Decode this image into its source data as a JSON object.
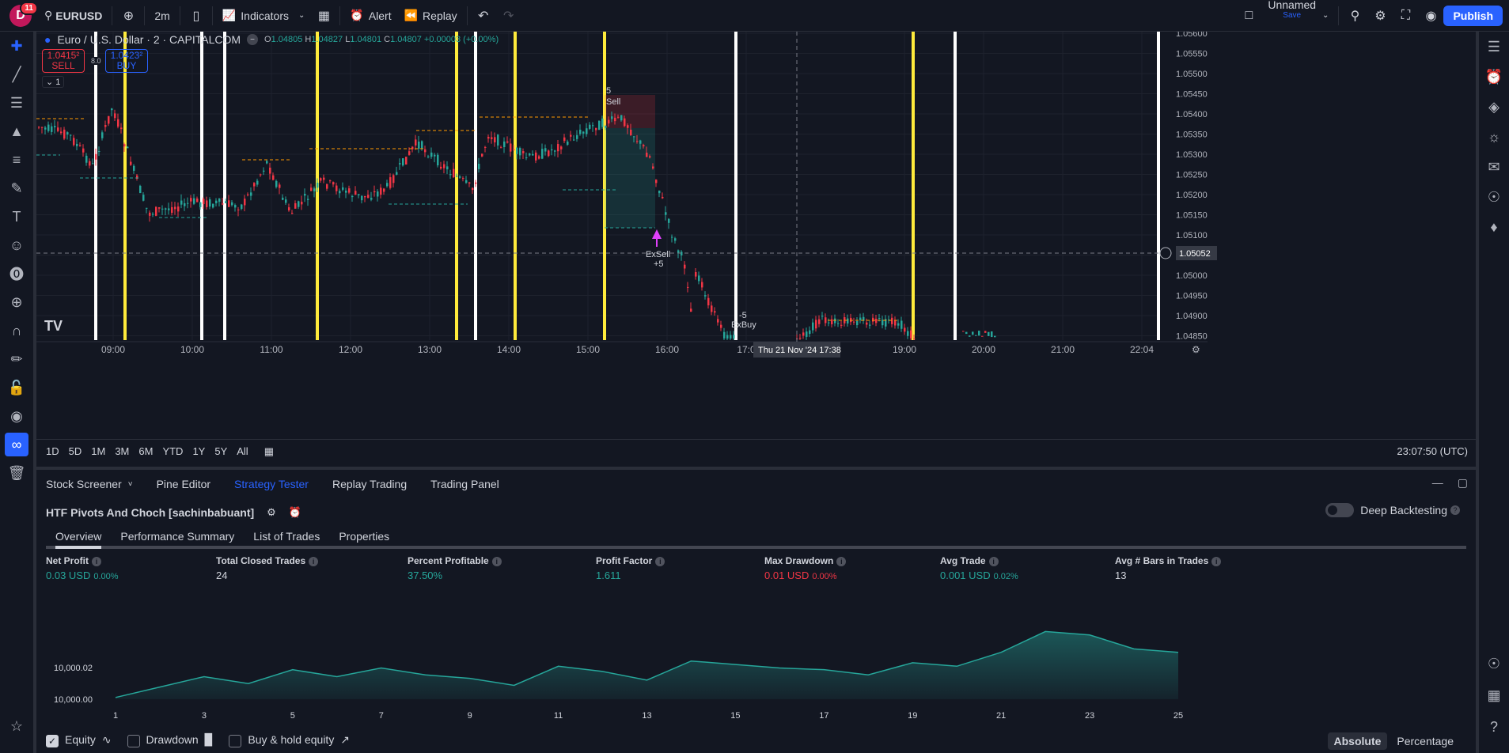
{
  "topbar": {
    "avatar_letter": "D",
    "notification_count": "11",
    "symbol": "EURUSD",
    "interval": "2m",
    "indicators_label": "Indicators",
    "alert_label": "Alert",
    "replay_label": "Replay",
    "layout_name": "Unnamed",
    "layout_save": "Save",
    "publish_label": "Publish"
  },
  "chart": {
    "title": "Euro / U.S. Dollar · 2 · CAPITALCOM",
    "ohlc": {
      "o": "1.04805",
      "h": "1.04827",
      "l": "1.04801",
      "c": "1.04807",
      "change": "+0.00003 (+0.00%)"
    },
    "sell_price": "1.0415²",
    "sell_label": "SELL",
    "buy_price": "1.0423²",
    "buy_label": "BUY",
    "spread": "8.0",
    "collapse_count": "1",
    "crosshair_price": "1.05052",
    "crosshair_time": "Thu 21 Nov '24   17:38",
    "price_axis": [
      "1.05600",
      "1.05550",
      "1.05500",
      "1.05450",
      "1.05400",
      "1.05350",
      "1.05300",
      "1.05250",
      "1.05200",
      "1.05150",
      "1.05100",
      "1.05050",
      "1.05000",
      "1.04950",
      "1.04900",
      "1.04850"
    ],
    "time_axis": [
      "09:00",
      "10:00",
      "11:00",
      "12:00",
      "13:00",
      "14:00",
      "15:00",
      "16:00",
      "17:0",
      "19:00",
      "20:00",
      "21:00",
      "22:04"
    ],
    "annotations": {
      "sell": "Sell",
      "exsell": "ExSell",
      "exsell_pl": "+5",
      "exbuy": "ExBuy",
      "exbuy_pl": "-5",
      "top_pl": "5"
    }
  },
  "rangebar": {
    "ranges": [
      "1D",
      "5D",
      "1M",
      "3M",
      "6M",
      "YTD",
      "1Y",
      "5Y",
      "All"
    ],
    "clock": "23:07:50 (UTC)"
  },
  "panel": {
    "tabs": [
      "Stock Screener",
      "Pine Editor",
      "Strategy Tester",
      "Replay Trading",
      "Trading Panel"
    ],
    "active_tab": "Strategy Tester",
    "strategy_title": "HTF Pivots And Choch [sachinbabuant]",
    "deep_backtesting": "Deep Backtesting",
    "subtabs": [
      "Overview",
      "Performance Summary",
      "List of Trades",
      "Properties"
    ],
    "metrics": [
      {
        "label": "Net Profit",
        "value": "0.03 USD",
        "sub": "0.00%",
        "color": "#26a69a"
      },
      {
        "label": "Total Closed Trades",
        "value": "24",
        "sub": "",
        "color": "#d1d4dc"
      },
      {
        "label": "Percent Profitable",
        "value": "37.50%",
        "sub": "",
        "color": "#26a69a"
      },
      {
        "label": "Profit Factor",
        "value": "1.611",
        "sub": "",
        "color": "#26a69a"
      },
      {
        "label": "Max Drawdown",
        "value": "0.01 USD",
        "sub": "0.00%",
        "color": "#f23645"
      },
      {
        "label": "Avg Trade",
        "value": "0.001 USD",
        "sub": "0.02%",
        "color": "#26a69a"
      },
      {
        "label": "Avg # Bars in Trades",
        "value": "13",
        "sub": "",
        "color": "#d1d4dc"
      }
    ],
    "equity_chart": {
      "y_ticks": [
        "10,000.02",
        "10,000.00"
      ],
      "x_ticks": [
        "1",
        "3",
        "5",
        "7",
        "9",
        "11",
        "13",
        "15",
        "17",
        "19",
        "21",
        "23",
        "25"
      ]
    },
    "legend": {
      "equity": "Equity",
      "drawdown": "Drawdown",
      "buy_hold": "Buy & hold equity"
    },
    "mode": {
      "absolute": "Absolute",
      "percentage": "Percentage"
    }
  },
  "chart_data": {
    "type": "area",
    "x": [
      1,
      2,
      3,
      4,
      5,
      6,
      7,
      8,
      9,
      10,
      11,
      12,
      13,
      14,
      15,
      16,
      17,
      18,
      19,
      20,
      21,
      22,
      23,
      24,
      25
    ],
    "series": [
      {
        "values": [
          10000.0,
          10000.006,
          10000.012,
          10000.008,
          10000.016,
          10000.012,
          10000.017,
          10000.013,
          10000.011,
          10000.007,
          10000.018,
          10000.015,
          10000.01,
          10000.021,
          10000.019,
          10000.017,
          10000.016,
          10000.013,
          10000.02,
          10000.018,
          10000.026,
          10000.038,
          10000.036,
          10000.028,
          10000.026
        ]
      }
    ],
    "ylim": [
      9999.999,
      10000.04
    ],
    "xlim": [
      1,
      25
    ]
  },
  "colors": {
    "accent": "#2962ff",
    "up": "#26a69a",
    "down": "#f23645",
    "session_yellow": "#ffeb3b",
    "session_white": "#ffffff"
  }
}
